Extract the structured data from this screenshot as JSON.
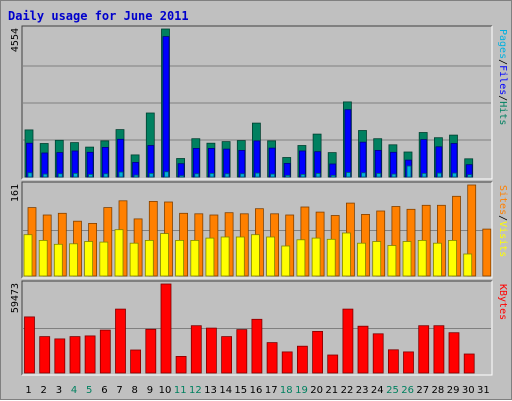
{
  "chart_data": {
    "type": "bar",
    "title": "Daily usage for June 2011",
    "days": [
      "1",
      "2",
      "3",
      "4",
      "5",
      "6",
      "7",
      "8",
      "9",
      "10",
      "11",
      "12",
      "13",
      "14",
      "15",
      "16",
      "17",
      "18",
      "19",
      "20",
      "21",
      "22",
      "23",
      "24",
      "25",
      "26",
      "27",
      "28",
      "29",
      "30",
      "31"
    ],
    "weekend_days": [
      "4",
      "5",
      "11",
      "12",
      "18",
      "19",
      "25",
      "26"
    ],
    "panels": [
      {
        "id": "top",
        "ymax_label": "4554",
        "ymax": 4554,
        "side_label": [
          "Pages",
          "/",
          "Files",
          "/",
          "Hits"
        ],
        "side_colors": [
          "#00b0e0",
          "#000000",
          "#0000ff",
          "#000000",
          "#008060"
        ],
        "series": [
          {
            "name": "Hits",
            "color": "#008060",
            "values": [
              1450,
              1030,
              1130,
              1060,
              920,
              1110,
              1460,
              680,
              1970,
              4554,
              570,
              1180,
              1040,
              1090,
              1120,
              1660,
              1110,
              600,
              970,
              1320,
              750,
              2310,
              1430,
              1180,
              990,
              770,
              1370,
              1210,
              1290,
              560,
              0
            ]
          },
          {
            "name": "Files",
            "color": "#0000ff",
            "values": [
              1040,
              740,
              750,
              800,
              760,
              910,
              1160,
              450,
              970,
              4320,
              410,
              880,
              880,
              860,
              820,
              1110,
              890,
              420,
              800,
              780,
              400,
              2070,
              1070,
              820,
              760,
              520,
              1150,
              930,
              1030,
              380,
              0
            ]
          },
          {
            "name": "Pages",
            "color": "#00b0e0",
            "values": [
              130,
              90,
              100,
              110,
              80,
              100,
              150,
              60,
              110,
              160,
              40,
              100,
              110,
              100,
              100,
              120,
              90,
              50,
              80,
              110,
              50,
              140,
              130,
              110,
              90,
              340,
              110,
              120,
              120,
              70,
              0
            ]
          }
        ]
      },
      {
        "id": "middle",
        "ymax_label": "161",
        "ymax": 161,
        "side_label": [
          "Sites",
          "/",
          "Visits"
        ],
        "side_colors": [
          "#ff8000",
          "#000000",
          "#ffff00"
        ],
        "series": [
          {
            "name": "Visits",
            "color": "#ff8000",
            "values": [
              121,
              108,
              111,
              97,
              93,
              121,
              133,
              101,
              132,
              131,
              111,
              110,
              108,
              112,
              110,
              119,
              110,
              108,
              122,
              113,
              107,
              129,
              109,
              115,
              123,
              118,
              125,
              125,
              141,
              161,
              83
            ]
          },
          {
            "name": "Sites",
            "color": "#ffff00",
            "values": [
              73,
              63,
              56,
              57,
              61,
              60,
              82,
              58,
              63,
              75,
              63,
              63,
              67,
              69,
              69,
              73,
              69,
              53,
              64,
              67,
              65,
              76,
              58,
              61,
              54,
              61,
              63,
              58,
              63,
              39,
              0
            ]
          }
        ]
      },
      {
        "id": "bottom",
        "ymax_label": "59473",
        "ymax": 59473,
        "side_label": [
          "KBytes"
        ],
        "side_colors": [
          "#ff0000"
        ],
        "series": [
          {
            "name": "KBytes",
            "color": "#ff0000",
            "values": [
              37500,
              24300,
              22800,
              24300,
              24800,
              28700,
              42700,
              15400,
              29200,
              59473,
              11100,
              31600,
              30000,
              24300,
              29000,
              35900,
              20300,
              14100,
              17900,
              27800,
              12000,
              42700,
              31300,
              26200,
              15500,
              14100,
              31600,
              31600,
              26900,
              12700,
              0
            ]
          }
        ]
      }
    ]
  }
}
